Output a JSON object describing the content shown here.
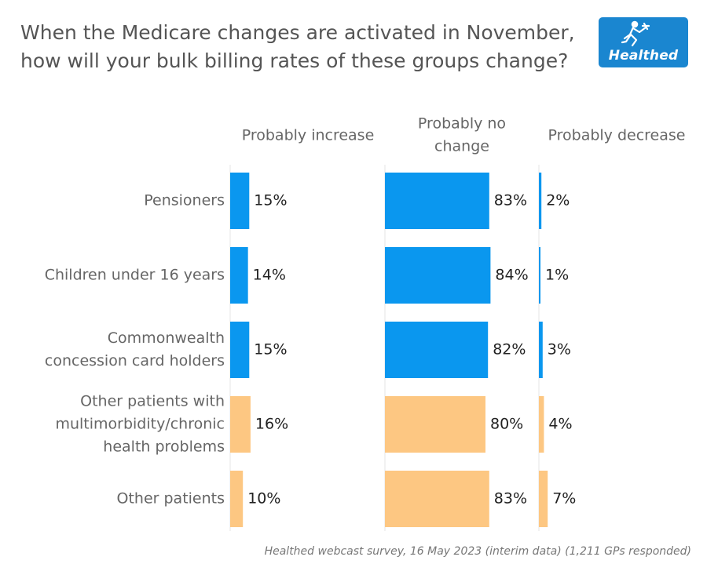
{
  "header": {
    "title_line1": "When the Medicare changes are activated in November,",
    "title_line2": "how will your bulk billing rates of these groups change?",
    "logo_text": "Healthed"
  },
  "footnote": "Healthed webcast survey, 16 May 2023 (interim data) (1,211 GPs responded)",
  "colors": {
    "blue": "#0a97ef",
    "orange": "#fdc782"
  },
  "chart_data": {
    "type": "bar",
    "orientation": "horizontal",
    "layout": "small-multiples",
    "categories": [
      [
        "Pensioners"
      ],
      [
        "Children under 16 years"
      ],
      [
        "Commonwealth",
        "concession card holders"
      ],
      [
        "Other patients with",
        "multimorbidity/chronic",
        "health problems"
      ],
      [
        "Other patients"
      ]
    ],
    "category_colors": [
      "blue",
      "blue",
      "blue",
      "orange",
      "orange"
    ],
    "series": [
      {
        "name": "Probably increase",
        "header_lines": [
          "Probably increase"
        ],
        "values": [
          15,
          14,
          15,
          16,
          10
        ],
        "labels": [
          "15%",
          "14%",
          "15%",
          "16%",
          "10%"
        ]
      },
      {
        "name": "Probably no change",
        "header_lines": [
          "Probably no",
          "change"
        ],
        "values": [
          83,
          84,
          82,
          80,
          83
        ],
        "labels": [
          "83%",
          "84%",
          "82%",
          "80%",
          "83%"
        ]
      },
      {
        "name": "Probably decrease",
        "header_lines": [
          "Probably decrease"
        ],
        "values": [
          2,
          1,
          3,
          4,
          7
        ],
        "labels": [
          "2%",
          "1%",
          "3%",
          "4%",
          "7%"
        ]
      }
    ],
    "value_unit": "%",
    "grid": false
  }
}
